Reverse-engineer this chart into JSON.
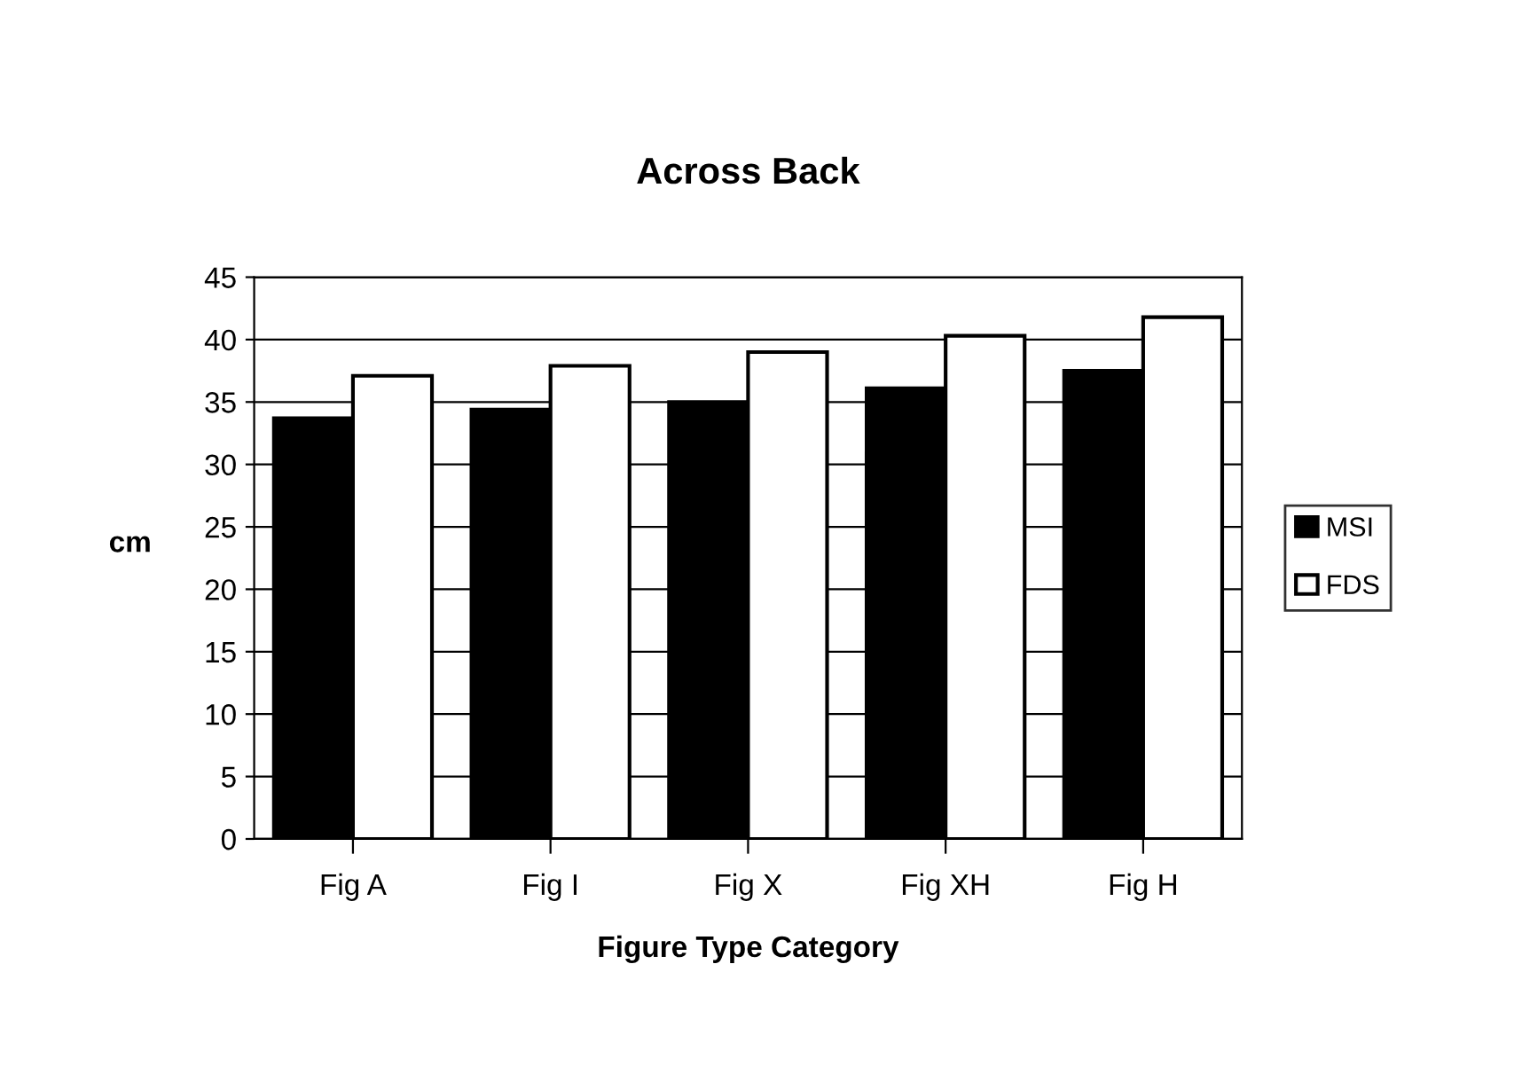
{
  "chart_data": {
    "type": "bar",
    "title": "Across Back",
    "xlabel": "Figure Type Category",
    "ylabel": "cm",
    "categories": [
      "Fig A",
      "Fig I",
      "Fig X",
      "Fig XH",
      "Fig H"
    ],
    "series": [
      {
        "name": "MSI",
        "color": "#000000",
        "values": [
          33.7,
          34.4,
          35.0,
          36.1,
          37.5
        ]
      },
      {
        "name": "FDS",
        "color": "#ffffff",
        "values": [
          37.1,
          37.9,
          39.0,
          40.3,
          41.8
        ]
      }
    ],
    "ylim": [
      0,
      45
    ],
    "yticks": [
      0,
      5,
      10,
      15,
      20,
      25,
      30,
      35,
      40,
      45
    ],
    "grid": "y",
    "legend": "right"
  }
}
